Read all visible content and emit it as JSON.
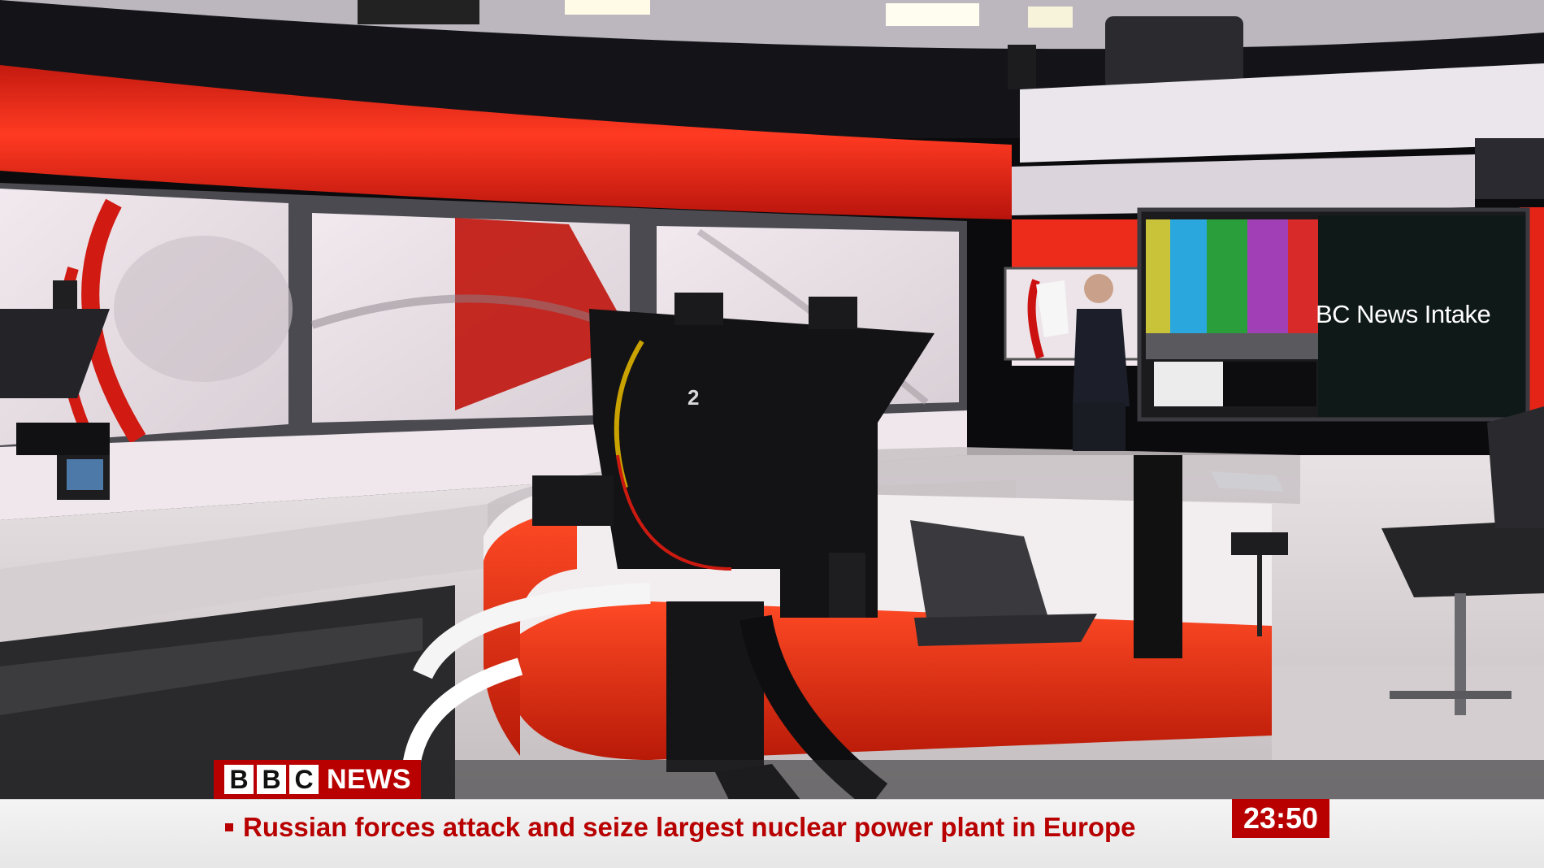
{
  "broadcast": {
    "logo": {
      "letters": [
        "B",
        "B",
        "C"
      ],
      "word": "NEWS"
    },
    "headline": "Russian forces attack and seize largest nuclear power plant in Europe",
    "clock": "23:50"
  },
  "studio": {
    "screen_label": "BC News Intake",
    "camera_number": "2"
  },
  "colors": {
    "bbc_red": "#b80000",
    "set_red": "#e8261a",
    "ticker_bg": "#f2f2f2",
    "color_bars": [
      "#c8c338",
      "#2aa7dc",
      "#2a9e3a",
      "#a13fb6",
      "#d92a2a"
    ]
  }
}
